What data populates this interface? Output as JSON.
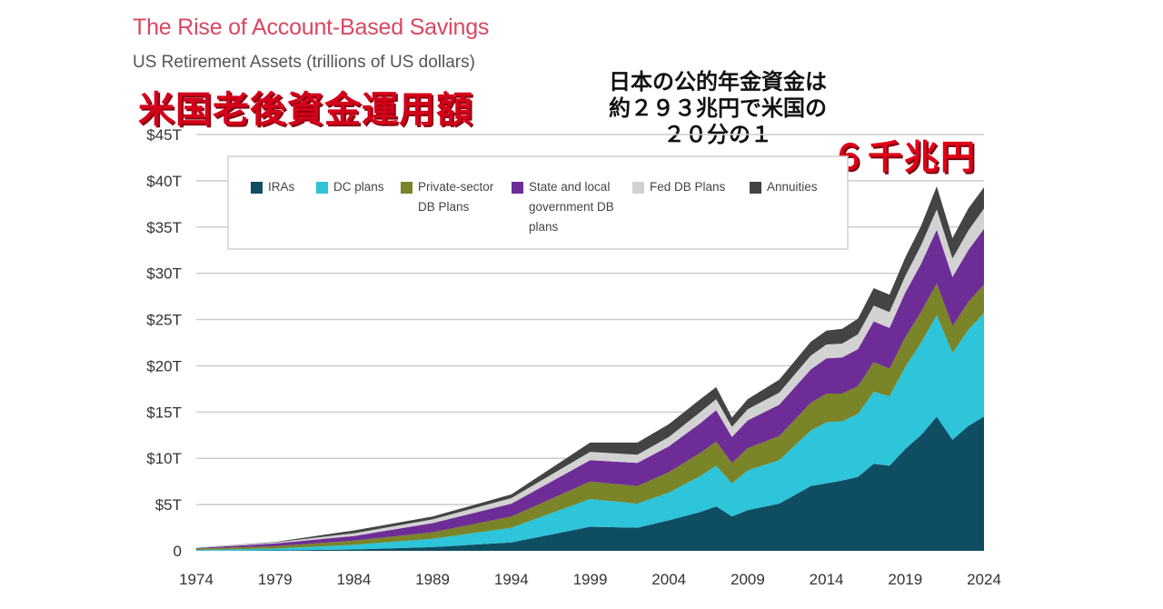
{
  "header": {
    "title": "The Rise of Account-Based Savings",
    "subtitle": "US Retirement Assets (trillions of US dollars)"
  },
  "annotations": {
    "jp_heading": "米国老後資金運用額",
    "jp_note": "日本の公的年金資金は\n約２９３兆円で米国の\n２０分の１",
    "jp_total": "６千兆円"
  },
  "colors": {
    "IRAs": "#0f4d63",
    "DC plans": "#2ec4d9",
    "Private-sector DB Plans": "#7a8428",
    "State and local government DB plans": "#6e2d96",
    "Fed DB Plans": "#d2d2d2",
    "Annuities": "#444444",
    "gridline": "#cccccc"
  },
  "chart_data": {
    "type": "area",
    "stacked": true,
    "title": "The Rise of Account-Based Savings",
    "subtitle": "US Retirement Assets (trillions of US dollars)",
    "xlabel": "",
    "ylabel": "",
    "ylim": [
      0,
      45
    ],
    "xlim": [
      1974,
      2024
    ],
    "yticks": [
      {
        "value": 0,
        "label": "0"
      },
      {
        "value": 5,
        "label": "$5T"
      },
      {
        "value": 10,
        "label": "$10T"
      },
      {
        "value": 15,
        "label": "$15T"
      },
      {
        "value": 20,
        "label": "$20T"
      },
      {
        "value": 25,
        "label": "$25T"
      },
      {
        "value": 30,
        "label": "$30T"
      },
      {
        "value": 35,
        "label": "$35T"
      },
      {
        "value": 40,
        "label": "$40T"
      },
      {
        "value": 45,
        "label": "$45T"
      }
    ],
    "xticks": [
      1974,
      1979,
      1984,
      1989,
      1994,
      1999,
      2004,
      2009,
      2014,
      2019,
      2024
    ],
    "grid": true,
    "legend_position": "top",
    "legend": [
      {
        "series": "IRAs",
        "lines": [
          "IRAs"
        ]
      },
      {
        "series": "DC plans",
        "lines": [
          "DC plans"
        ]
      },
      {
        "series": "Private-sector DB Plans",
        "lines": [
          "Private-sector",
          "DB Plans"
        ]
      },
      {
        "series": "State and local government DB plans",
        "lines": [
          "State and local",
          "government DB",
          "plans"
        ]
      },
      {
        "series": "Fed DB Plans",
        "lines": [
          "Fed DB Plans"
        ]
      },
      {
        "series": "Annuities",
        "lines": [
          "Annuities"
        ]
      }
    ],
    "x": [
      1974,
      1979,
      1984,
      1989,
      1994,
      1999,
      2002,
      2004,
      2006,
      2007,
      2008,
      2009,
      2011,
      2013,
      2014,
      2015,
      2016,
      2017,
      2018,
      2019,
      2020,
      2021,
      2022,
      2023,
      2024
    ],
    "series": [
      {
        "name": "IRAs",
        "values": [
          0.0,
          0.05,
          0.15,
          0.4,
          0.9,
          2.6,
          2.5,
          3.3,
          4.2,
          4.8,
          3.7,
          4.4,
          5.1,
          7.0,
          7.3,
          7.6,
          8.0,
          9.4,
          9.2,
          11.0,
          12.5,
          14.5,
          12.0,
          13.5,
          14.5
        ]
      },
      {
        "name": "DC plans",
        "values": [
          0.1,
          0.2,
          0.5,
          0.9,
          1.6,
          3.0,
          2.6,
          3.0,
          3.9,
          4.4,
          3.6,
          4.3,
          4.7,
          6.0,
          6.6,
          6.4,
          6.8,
          7.8,
          7.5,
          8.9,
          10.0,
          11.0,
          9.4,
          10.4,
          11.2
        ]
      },
      {
        "name": "Private-sector DB Plans",
        "values": [
          0.15,
          0.25,
          0.45,
          0.7,
          1.2,
          1.9,
          1.9,
          2.2,
          2.5,
          2.6,
          2.2,
          2.4,
          2.6,
          3.0,
          3.1,
          3.0,
          3.0,
          3.2,
          3.0,
          3.2,
          3.3,
          3.4,
          2.9,
          3.0,
          3.1
        ]
      },
      {
        "name": "State and local government DB plans",
        "values": [
          0.05,
          0.3,
          0.5,
          1.0,
          1.4,
          2.3,
          2.5,
          2.8,
          3.2,
          3.4,
          2.8,
          3.0,
          3.4,
          3.6,
          3.8,
          3.9,
          4.0,
          4.4,
          4.4,
          4.8,
          5.2,
          5.8,
          5.3,
          5.6,
          6.0
        ]
      },
      {
        "name": "Fed DB Plans",
        "values": [
          0.05,
          0.1,
          0.3,
          0.4,
          0.6,
          0.9,
          0.9,
          1.0,
          1.2,
          1.2,
          1.1,
          1.2,
          1.3,
          1.5,
          1.5,
          1.5,
          1.6,
          1.7,
          1.7,
          1.8,
          2.0,
          2.2,
          2.0,
          2.1,
          2.2
        ]
      },
      {
        "name": "Annuities",
        "values": [
          0.0,
          0.05,
          0.3,
          0.3,
          0.4,
          1.0,
          1.3,
          1.4,
          1.4,
          1.3,
          1.0,
          1.1,
          1.4,
          1.5,
          1.5,
          1.6,
          1.7,
          1.9,
          1.9,
          2.0,
          2.1,
          2.5,
          2.2,
          2.4,
          2.3
        ]
      }
    ]
  }
}
